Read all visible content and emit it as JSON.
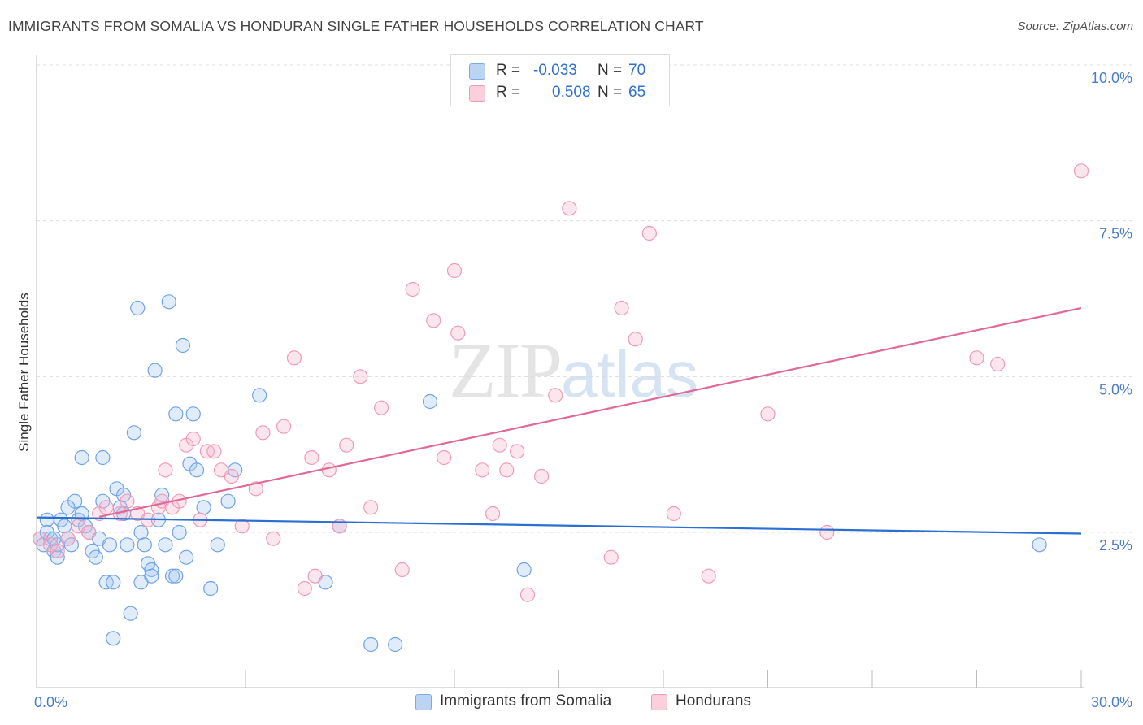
{
  "title": "IMMIGRANTS FROM SOMALIA VS HONDURAN SINGLE FATHER HOUSEHOLDS CORRELATION CHART",
  "source": "Source: ZipAtlas.com",
  "watermark": {
    "zip": "ZIP",
    "atlas": "atlas"
  },
  "legend": {
    "rows": [
      {
        "r_label": "R =",
        "r_value": "-0.033",
        "n_label": "N =",
        "n_value": "70",
        "color": "#a8c8f0"
      },
      {
        "r_label": "R =",
        "r_value": "0.508",
        "n_label": "N =",
        "n_value": "65",
        "color": "#f7b8cc"
      }
    ]
  },
  "bottom_legend": [
    {
      "label": "Immigrants from Somalia",
      "color": "#a8c8f0"
    },
    {
      "label": "Hondurans",
      "color": "#f7b8cc"
    }
  ],
  "chart_data": {
    "type": "scatter",
    "ylabel": "Single Father Households",
    "xlim": [
      0,
      30
    ],
    "ylim": [
      0,
      10.5
    ],
    "x_tick_labels": [
      {
        "value": 0,
        "label": "0.0%"
      },
      {
        "value": 30,
        "label": "30.0%"
      }
    ],
    "y_tick_labels": [
      {
        "value": 2.5,
        "label": "2.5%"
      },
      {
        "value": 5.0,
        "label": "5.0%"
      },
      {
        "value": 7.5,
        "label": "7.5%"
      },
      {
        "value": 10.0,
        "label": "10.0%"
      }
    ],
    "grid": "horizontal dashed",
    "series": [
      {
        "name": "Immigrants from Somalia",
        "color": "#6fa3e6",
        "trend": {
          "x": [
            0,
            30
          ],
          "y": [
            2.74,
            2.48
          ],
          "color": "#2a6fd1"
        },
        "points": [
          [
            0.1,
            2.4
          ],
          [
            0.2,
            2.3
          ],
          [
            0.3,
            2.7
          ],
          [
            0.4,
            2.4
          ],
          [
            0.5,
            2.2
          ],
          [
            0.6,
            2.1
          ],
          [
            0.6,
            2.3
          ],
          [
            0.7,
            2.7
          ],
          [
            0.8,
            2.6
          ],
          [
            0.9,
            2.4
          ],
          [
            1.0,
            2.3
          ],
          [
            1.1,
            3.0
          ],
          [
            1.2,
            2.7
          ],
          [
            1.3,
            2.8
          ],
          [
            1.4,
            2.6
          ],
          [
            1.5,
            2.5
          ],
          [
            1.6,
            2.2
          ],
          [
            1.7,
            2.1
          ],
          [
            1.8,
            2.4
          ],
          [
            1.9,
            3.0
          ],
          [
            2.0,
            1.7
          ],
          [
            2.1,
            2.3
          ],
          [
            2.2,
            1.7
          ],
          [
            2.3,
            3.2
          ],
          [
            2.4,
            2.9
          ],
          [
            2.5,
            3.1
          ],
          [
            2.6,
            2.3
          ],
          [
            2.7,
            1.2
          ],
          [
            2.8,
            4.1
          ],
          [
            2.9,
            6.1
          ],
          [
            3.0,
            2.5
          ],
          [
            3.1,
            2.3
          ],
          [
            3.2,
            2.0
          ],
          [
            3.3,
            1.9
          ],
          [
            3.4,
            5.1
          ],
          [
            3.5,
            2.7
          ],
          [
            3.6,
            3.1
          ],
          [
            3.7,
            2.3
          ],
          [
            3.8,
            6.2
          ],
          [
            3.9,
            1.8
          ],
          [
            4.0,
            4.4
          ],
          [
            4.1,
            2.5
          ],
          [
            4.2,
            5.5
          ],
          [
            4.3,
            2.1
          ],
          [
            4.4,
            3.6
          ],
          [
            4.5,
            4.4
          ],
          [
            4.6,
            3.5
          ],
          [
            4.8,
            2.9
          ],
          [
            5.0,
            1.6
          ],
          [
            5.2,
            2.3
          ],
          [
            5.5,
            3.0
          ],
          [
            5.7,
            3.5
          ],
          [
            6.4,
            4.7
          ],
          [
            8.3,
            1.7
          ],
          [
            8.7,
            2.6
          ],
          [
            9.6,
            0.7
          ],
          [
            10.3,
            0.7
          ],
          [
            11.3,
            4.6
          ],
          [
            14.0,
            1.9
          ],
          [
            28.8,
            2.3
          ],
          [
            0.3,
            2.5
          ],
          [
            0.5,
            2.4
          ],
          [
            0.9,
            2.9
          ],
          [
            1.3,
            3.7
          ],
          [
            1.9,
            3.7
          ],
          [
            2.2,
            0.8
          ],
          [
            2.5,
            2.8
          ],
          [
            3.0,
            1.7
          ],
          [
            3.3,
            1.8
          ],
          [
            4.0,
            1.8
          ]
        ]
      },
      {
        "name": "Hondurans",
        "color": "#f09ab8",
        "trend": {
          "x": [
            1.8,
            30
          ],
          "y": [
            2.75,
            6.1
          ],
          "color": "#e0699a"
        },
        "points": [
          [
            0.1,
            2.4
          ],
          [
            0.4,
            2.3
          ],
          [
            0.6,
            2.2
          ],
          [
            0.9,
            2.4
          ],
          [
            1.2,
            2.6
          ],
          [
            1.5,
            2.5
          ],
          [
            1.8,
            2.8
          ],
          [
            2.0,
            2.9
          ],
          [
            2.4,
            2.8
          ],
          [
            2.6,
            3.0
          ],
          [
            2.9,
            2.8
          ],
          [
            3.2,
            2.7
          ],
          [
            3.5,
            2.9
          ],
          [
            3.6,
            3.0
          ],
          [
            3.7,
            3.5
          ],
          [
            3.9,
            2.9
          ],
          [
            4.1,
            3.0
          ],
          [
            4.3,
            3.9
          ],
          [
            4.5,
            4.0
          ],
          [
            4.7,
            2.7
          ],
          [
            4.9,
            3.8
          ],
          [
            5.1,
            3.8
          ],
          [
            5.3,
            3.5
          ],
          [
            5.6,
            3.4
          ],
          [
            5.9,
            2.6
          ],
          [
            6.3,
            3.2
          ],
          [
            6.5,
            4.1
          ],
          [
            6.8,
            2.4
          ],
          [
            7.1,
            4.2
          ],
          [
            7.4,
            5.3
          ],
          [
            7.7,
            1.6
          ],
          [
            7.9,
            3.7
          ],
          [
            8.0,
            1.8
          ],
          [
            8.4,
            3.5
          ],
          [
            8.7,
            2.6
          ],
          [
            8.9,
            3.9
          ],
          [
            9.3,
            5.0
          ],
          [
            9.6,
            2.9
          ],
          [
            9.9,
            4.5
          ],
          [
            10.5,
            1.9
          ],
          [
            10.8,
            6.4
          ],
          [
            11.4,
            5.9
          ],
          [
            11.7,
            3.7
          ],
          [
            12.0,
            6.7
          ],
          [
            12.1,
            5.7
          ],
          [
            12.8,
            3.5
          ],
          [
            13.1,
            2.8
          ],
          [
            13.3,
            3.9
          ],
          [
            13.5,
            3.5
          ],
          [
            13.8,
            3.8
          ],
          [
            14.1,
            1.5
          ],
          [
            14.5,
            3.4
          ],
          [
            14.9,
            4.7
          ],
          [
            15.3,
            7.7
          ],
          [
            16.5,
            2.1
          ],
          [
            16.8,
            6.1
          ],
          [
            17.2,
            5.6
          ],
          [
            17.6,
            7.3
          ],
          [
            18.3,
            2.8
          ],
          [
            19.3,
            1.8
          ],
          [
            21.0,
            4.4
          ],
          [
            22.7,
            2.5
          ],
          [
            27.0,
            5.3
          ],
          [
            27.6,
            5.2
          ],
          [
            30.0,
            8.3
          ]
        ]
      }
    ]
  }
}
